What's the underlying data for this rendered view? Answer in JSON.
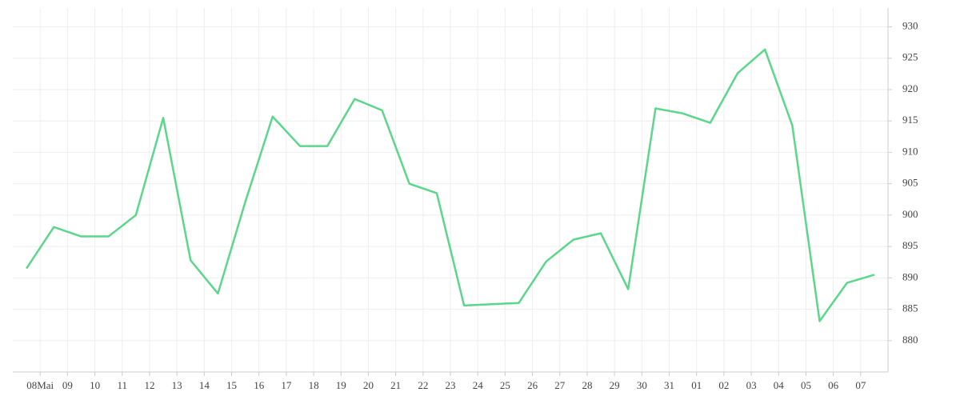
{
  "chart_data": {
    "type": "line",
    "x": [
      0,
      1,
      2,
      3,
      4,
      5,
      6,
      7,
      8,
      9,
      10,
      11,
      12,
      13,
      14,
      15,
      16,
      18,
      19,
      20,
      21,
      22,
      23,
      24,
      25,
      26,
      27,
      28,
      29,
      30,
      31
    ],
    "series": [
      {
        "color": "#5bd68a",
        "values": [
          891.5,
          898.1,
          896.6,
          896.6,
          900.0,
          915.5,
          892.8,
          887.5,
          902.1,
          915.7,
          911.0,
          911.0,
          918.5,
          916.7,
          905.0,
          903.5,
          885.6,
          886.0,
          892.6,
          896.1,
          897.1,
          888.2,
          917.0,
          916.2,
          914.7,
          922.6,
          926.4,
          914.3,
          883.1,
          889.2,
          890.5
        ]
      }
    ],
    "xlim": [
      -0.5,
      31.5
    ],
    "xticks": [
      {
        "value": 0.5,
        "label": "08Mai"
      },
      {
        "value": 1.5,
        "label": "09"
      },
      {
        "value": 2.5,
        "label": "10"
      },
      {
        "value": 3.5,
        "label": "11"
      },
      {
        "value": 4.5,
        "label": "12"
      },
      {
        "value": 5.5,
        "label": "13"
      },
      {
        "value": 6.5,
        "label": "14"
      },
      {
        "value": 7.5,
        "label": "15"
      },
      {
        "value": 8.5,
        "label": "16"
      },
      {
        "value": 9.5,
        "label": "17"
      },
      {
        "value": 10.5,
        "label": "18"
      },
      {
        "value": 11.5,
        "label": "19"
      },
      {
        "value": 12.5,
        "label": "20"
      },
      {
        "value": 13.5,
        "label": "21"
      },
      {
        "value": 14.5,
        "label": "22"
      },
      {
        "value": 15.5,
        "label": "23"
      },
      {
        "value": 16.5,
        "label": "24"
      },
      {
        "value": 17.5,
        "label": "25"
      },
      {
        "value": 18.5,
        "label": "26"
      },
      {
        "value": 19.5,
        "label": "27"
      },
      {
        "value": 20.5,
        "label": "28"
      },
      {
        "value": 21.5,
        "label": "29"
      },
      {
        "value": 22.5,
        "label": "30"
      },
      {
        "value": 23.5,
        "label": "31"
      },
      {
        "value": 24.5,
        "label": "01"
      },
      {
        "value": 25.5,
        "label": "02"
      },
      {
        "value": 26.5,
        "label": "03"
      },
      {
        "value": 27.5,
        "label": "04"
      },
      {
        "value": 28.5,
        "label": "05"
      },
      {
        "value": 29.5,
        "label": "06"
      },
      {
        "value": 30.5,
        "label": "07"
      }
    ],
    "ylim": [
      875,
      933
    ],
    "yticks": [
      880,
      885,
      890,
      895,
      900,
      905,
      910,
      915,
      920,
      925,
      930
    ],
    "grid": true
  }
}
